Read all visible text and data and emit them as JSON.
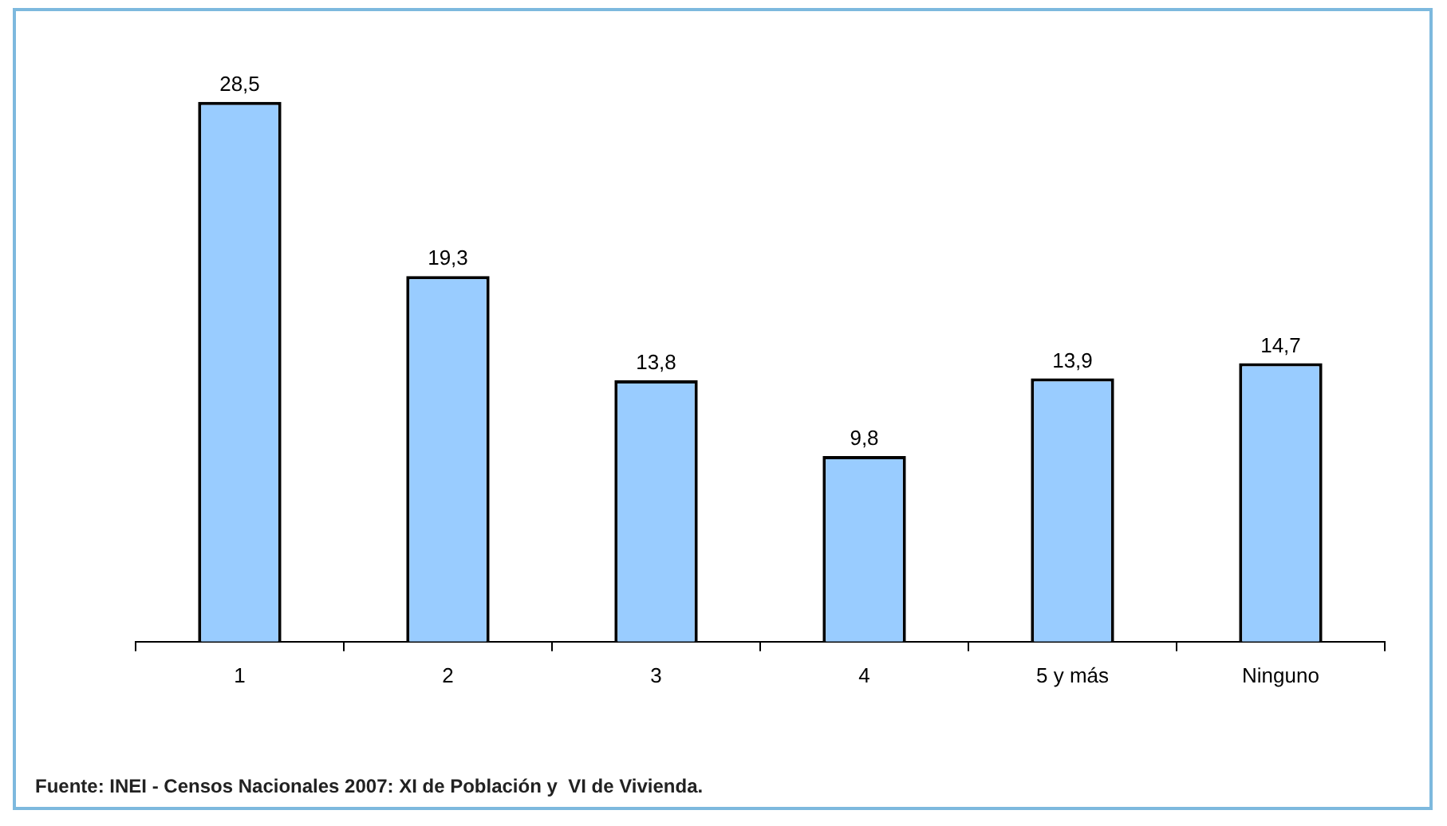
{
  "chart_data": {
    "type": "bar",
    "categories": [
      "1",
      "2",
      "3",
      "4",
      "5 y más",
      "Ninguno"
    ],
    "values": [
      28.5,
      19.3,
      13.8,
      9.8,
      13.9,
      14.7
    ],
    "color": "#99ccff",
    "value_labels": [
      "28,5",
      "19,3",
      "13,8",
      "9,8",
      "13,9",
      "14,7"
    ],
    "tick_labels": "x",
    "grid": false,
    "legend": false,
    "annotations": [
      "Fuente: INEI - Censos Nacionales 2007: XI de Población y  VI de Vivienda."
    ]
  }
}
